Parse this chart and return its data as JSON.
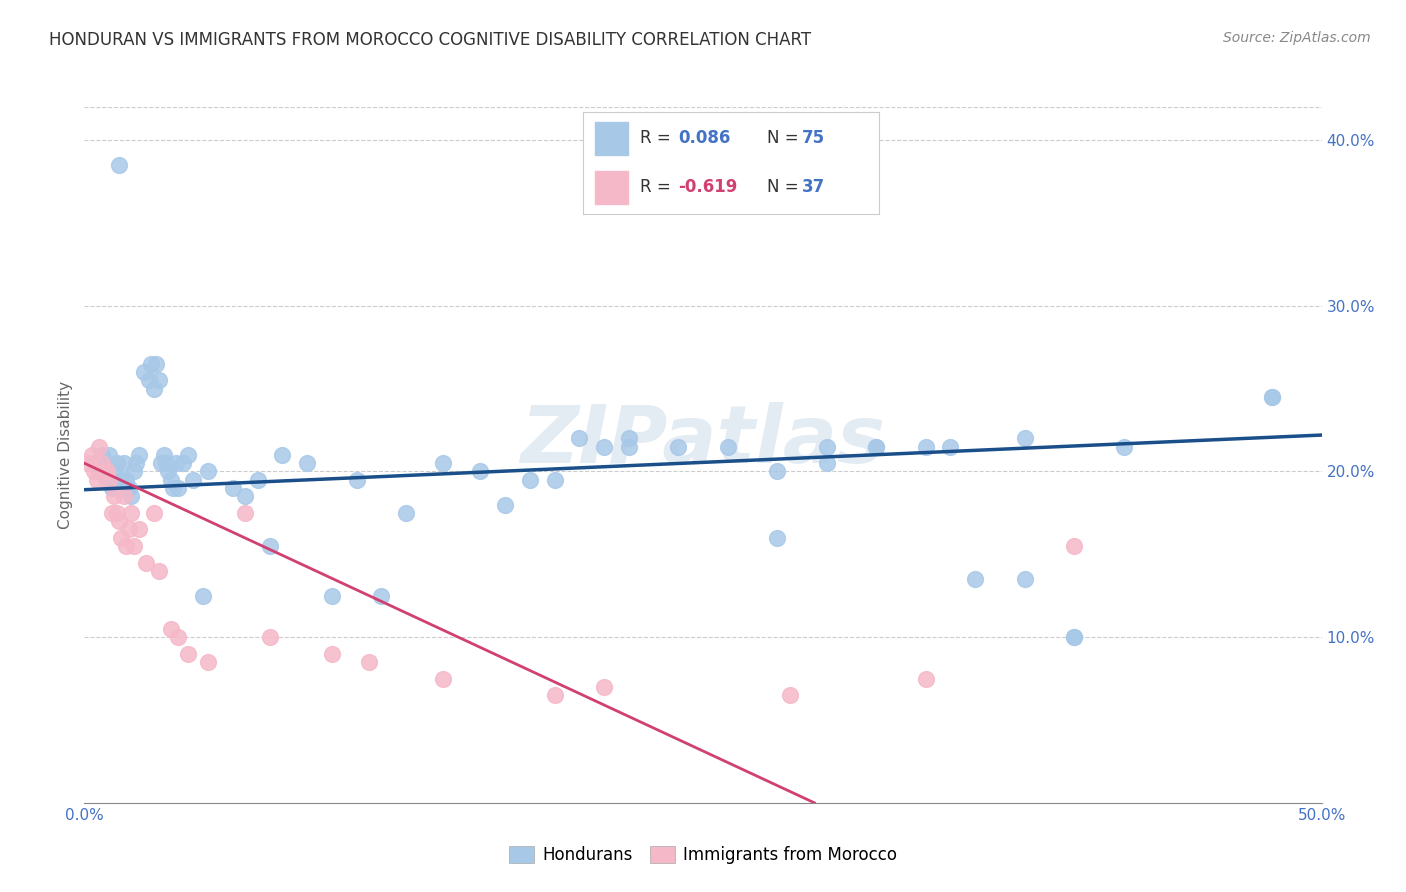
{
  "title": "HONDURAN VS IMMIGRANTS FROM MOROCCO COGNITIVE DISABILITY CORRELATION CHART",
  "source": "Source: ZipAtlas.com",
  "ylabel": "Cognitive Disability",
  "xlim": [
    0.0,
    0.5
  ],
  "ylim": [
    0.0,
    0.42
  ],
  "xticks": [
    0.0,
    0.1,
    0.2,
    0.3,
    0.4,
    0.5
  ],
  "yticks": [
    0.1,
    0.2,
    0.3,
    0.4
  ],
  "xtick_labels": [
    "0.0%",
    "",
    "",
    "",
    "",
    "50.0%"
  ],
  "ytick_labels": [
    "10.0%",
    "20.0%",
    "30.0%",
    "40.0%"
  ],
  "blue_R": 0.086,
  "blue_N": 75,
  "pink_R": -0.619,
  "pink_N": 37,
  "blue_color": "#a8c8e8",
  "pink_color": "#f5b8c8",
  "blue_line_color": "#1a4f8a",
  "pink_line_color": "#d04070",
  "legend_label_blue": "Hondurans",
  "legend_label_pink": "Immigrants from Morocco",
  "watermark": "ZIPatlas",
  "blue_line_x0": 0.0,
  "blue_line_x1": 0.5,
  "blue_line_y0": 0.189,
  "blue_line_y1": 0.222,
  "pink_line_x0": 0.0,
  "pink_line_x1": 0.295,
  "pink_line_y0": 0.205,
  "pink_line_y1": 0.0,
  "blue_x": [
    0.014,
    0.005,
    0.006,
    0.007,
    0.008,
    0.009,
    0.01,
    0.011,
    0.012,
    0.013,
    0.014,
    0.015,
    0.016,
    0.017,
    0.018,
    0.019,
    0.02,
    0.021,
    0.022,
    0.024,
    0.026,
    0.027,
    0.028,
    0.029,
    0.03,
    0.031,
    0.032,
    0.033,
    0.034,
    0.035,
    0.036,
    0.037,
    0.038,
    0.04,
    0.042,
    0.044,
    0.048,
    0.05,
    0.06,
    0.065,
    0.07,
    0.075,
    0.08,
    0.09,
    0.1,
    0.11,
    0.12,
    0.13,
    0.145,
    0.16,
    0.17,
    0.18,
    0.19,
    0.2,
    0.21,
    0.22,
    0.24,
    0.26,
    0.28,
    0.3,
    0.32,
    0.34,
    0.36,
    0.38,
    0.4,
    0.42,
    0.48,
    0.22,
    0.28,
    0.3,
    0.32,
    0.35,
    0.38,
    0.4,
    0.48
  ],
  "blue_y": [
    0.385,
    0.205,
    0.2,
    0.21,
    0.2,
    0.195,
    0.21,
    0.19,
    0.2,
    0.205,
    0.19,
    0.195,
    0.205,
    0.195,
    0.19,
    0.185,
    0.2,
    0.205,
    0.21,
    0.26,
    0.255,
    0.265,
    0.25,
    0.265,
    0.255,
    0.205,
    0.21,
    0.205,
    0.2,
    0.195,
    0.19,
    0.205,
    0.19,
    0.205,
    0.21,
    0.195,
    0.125,
    0.2,
    0.19,
    0.185,
    0.195,
    0.155,
    0.21,
    0.205,
    0.125,
    0.195,
    0.125,
    0.175,
    0.205,
    0.2,
    0.18,
    0.195,
    0.195,
    0.22,
    0.215,
    0.215,
    0.215,
    0.215,
    0.2,
    0.205,
    0.215,
    0.215,
    0.135,
    0.22,
    0.1,
    0.215,
    0.245,
    0.22,
    0.16,
    0.215,
    0.215,
    0.215,
    0.135,
    0.1,
    0.245
  ],
  "pink_x": [
    0.002,
    0.003,
    0.004,
    0.005,
    0.006,
    0.007,
    0.008,
    0.009,
    0.01,
    0.011,
    0.012,
    0.013,
    0.014,
    0.015,
    0.016,
    0.017,
    0.018,
    0.019,
    0.02,
    0.022,
    0.025,
    0.028,
    0.03,
    0.035,
    0.038,
    0.042,
    0.05,
    0.065,
    0.075,
    0.1,
    0.115,
    0.145,
    0.19,
    0.21,
    0.285,
    0.34,
    0.4
  ],
  "pink_y": [
    0.205,
    0.21,
    0.2,
    0.195,
    0.215,
    0.205,
    0.2,
    0.2,
    0.195,
    0.175,
    0.185,
    0.175,
    0.17,
    0.16,
    0.185,
    0.155,
    0.165,
    0.175,
    0.155,
    0.165,
    0.145,
    0.175,
    0.14,
    0.105,
    0.1,
    0.09,
    0.085,
    0.175,
    0.1,
    0.09,
    0.085,
    0.075,
    0.065,
    0.07,
    0.065,
    0.075,
    0.155
  ]
}
